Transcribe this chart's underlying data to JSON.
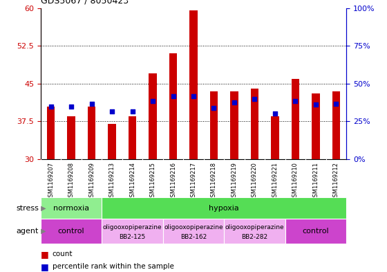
{
  "title": "GDS5067 / 8050423",
  "samples": [
    "GSM1169207",
    "GSM1169208",
    "GSM1169209",
    "GSM1169213",
    "GSM1169214",
    "GSM1169215",
    "GSM1169216",
    "GSM1169217",
    "GSM1169218",
    "GSM1169219",
    "GSM1169220",
    "GSM1169221",
    "GSM1169210",
    "GSM1169211",
    "GSM1169212"
  ],
  "counts": [
    40.5,
    38.5,
    40.5,
    37.0,
    38.5,
    47.0,
    51.0,
    59.5,
    43.5,
    43.5,
    44.0,
    38.5,
    46.0,
    43.0,
    43.5
  ],
  "percentiles_left_axis": [
    40.5,
    40.5,
    41.0,
    39.5,
    39.5,
    41.5,
    42.5,
    42.5,
    40.2,
    41.2,
    42.0,
    39.0,
    41.5,
    40.8,
    41.0
  ],
  "bar_bottom": 30,
  "ylim_left": [
    30,
    60
  ],
  "ylim_right": [
    0,
    100
  ],
  "yticks_left": [
    30,
    37.5,
    45,
    52.5,
    60
  ],
  "ytick_labels_left": [
    "30",
    "37.5",
    "45",
    "52.5",
    "60"
  ],
  "yticks_right": [
    0,
    25,
    50,
    75,
    100
  ],
  "ytick_labels_right": [
    "0%",
    "25%",
    "50%",
    "75%",
    "100%"
  ],
  "bar_color": "#cc0000",
  "dot_color": "#0000cc",
  "bar_width": 0.4,
  "plot_bg_color": "#ffffff",
  "label_area_bg": "#d0d0d0",
  "stress_groups": [
    {
      "label": "normoxia",
      "start": 0,
      "end": 3,
      "color": "#90ee90"
    },
    {
      "label": "hypoxia",
      "start": 3,
      "end": 15,
      "color": "#55dd55"
    }
  ],
  "agent_groups": [
    {
      "label": "control",
      "start": 0,
      "end": 3,
      "color": "#cc44cc"
    },
    {
      "label": "oligooxopiperazine\nBB2-125",
      "start": 3,
      "end": 6,
      "color": "#f0b0f0"
    },
    {
      "label": "oligooxopiperazine\nBB2-162",
      "start": 6,
      "end": 9,
      "color": "#f0b0f0"
    },
    {
      "label": "oligooxopiperazine\nBB2-282",
      "start": 9,
      "end": 12,
      "color": "#f0b0f0"
    },
    {
      "label": "control",
      "start": 12,
      "end": 15,
      "color": "#cc44cc"
    }
  ],
  "legend_items": [
    {
      "label": "count",
      "color": "#cc0000"
    },
    {
      "label": "percentile rank within the sample",
      "color": "#0000cc"
    }
  ],
  "left_axis_color": "#cc0000",
  "right_axis_color": "#0000cc",
  "bg_color": "#ffffff"
}
